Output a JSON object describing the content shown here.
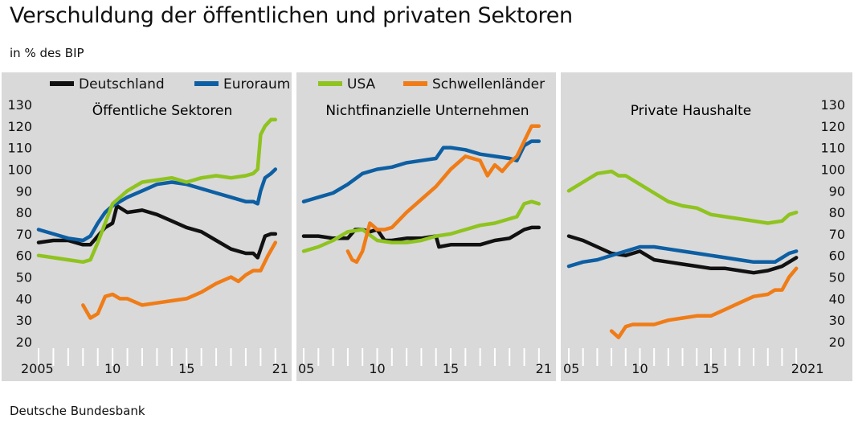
{
  "header": {
    "title": "Verschuldung der öffentlichen und privaten Sektoren",
    "subtitle": "in % des BIP"
  },
  "footer": {
    "source": "Deutsche Bundesbank"
  },
  "colors": {
    "panel_bg": "#d9d9d9",
    "Deutschland": "#111111",
    "Euroraum": "#0d5fa3",
    "USA": "#8fc31f",
    "Schwellenländer": "#f07c17"
  },
  "chart_data": [
    {
      "type": "line",
      "title": "Öffentliche Sektoren",
      "x_tick_labels": [
        "2005",
        "10",
        "15",
        "21"
      ],
      "y_tick_labels": [
        "20",
        "30",
        "40",
        "50",
        "60",
        "70",
        "80",
        "90",
        "100",
        "110",
        "120",
        "130"
      ],
      "xlim": [
        2005,
        2021.5
      ],
      "ylim": [
        17,
        133
      ],
      "legend": [
        "Deutschland",
        "Euroraum",
        "USA",
        "Schwellenländer"
      ],
      "legend_placement": "top",
      "series": [
        {
          "name": "Deutschland",
          "x": [
            2005,
            2006,
            2007,
            2008,
            2008.5,
            2009,
            2009.5,
            2010,
            2010.3,
            2011,
            2012,
            2013,
            2014,
            2015,
            2016,
            2017,
            2018,
            2019,
            2019.5,
            2019.8,
            2020,
            2020.3,
            2020.7,
            2021
          ],
          "y": [
            66,
            67,
            67,
            65,
            65,
            69,
            73,
            75,
            83,
            80,
            81,
            79,
            76,
            73,
            71,
            67,
            63,
            61,
            61,
            59,
            63,
            69,
            70,
            70
          ]
        },
        {
          "name": "Euroraum",
          "x": [
            2005,
            2006,
            2007,
            2008,
            2008.5,
            2009,
            2009.5,
            2010,
            2011,
            2012,
            2013,
            2014,
            2015,
            2016,
            2017,
            2018,
            2019,
            2019.5,
            2019.8,
            2020,
            2020.3,
            2020.7,
            2021
          ],
          "y": [
            72,
            70,
            68,
            67,
            69,
            75,
            80,
            83,
            87,
            90,
            93,
            94,
            93,
            91,
            89,
            87,
            85,
            85,
            84,
            90,
            96,
            98,
            100
          ]
        },
        {
          "name": "USA",
          "x": [
            2005,
            2006,
            2007,
            2008,
            2008.5,
            2009,
            2009.5,
            2010,
            2011,
            2012,
            2013,
            2014,
            2015,
            2016,
            2017,
            2018,
            2019,
            2019.5,
            2019.8,
            2020,
            2020.3,
            2020.7,
            2021
          ],
          "y": [
            60,
            59,
            58,
            57,
            58,
            66,
            75,
            84,
            90,
            94,
            95,
            96,
            94,
            96,
            97,
            96,
            97,
            98,
            100,
            116,
            120,
            123,
            123
          ]
        },
        {
          "name": "Schwellenländer",
          "x": [
            2008,
            2008.5,
            2009,
            2009.5,
            2010,
            2010.5,
            2011,
            2012,
            2013,
            2014,
            2015,
            2016,
            2017,
            2018,
            2018.5,
            2019,
            2019.5,
            2020,
            2020.5,
            2021
          ],
          "y": [
            37,
            31,
            33,
            41,
            42,
            40,
            40,
            37,
            38,
            39,
            40,
            43,
            47,
            50,
            48,
            51,
            53,
            53,
            60,
            66
          ]
        }
      ]
    },
    {
      "type": "line",
      "title": "Nichtfinanzielle Unternehmen",
      "x_tick_labels": [
        "05",
        "10",
        "15",
        "21"
      ],
      "xlim": [
        2005,
        2021.5
      ],
      "ylim": [
        17,
        133
      ],
      "series": [
        {
          "name": "Deutschland",
          "x": [
            2005,
            2006,
            2007,
            2008,
            2008.5,
            2009,
            2009.5,
            2010,
            2010.5,
            2011,
            2012,
            2013,
            2014,
            2014.2,
            2015,
            2016,
            2017,
            2018,
            2019,
            2019.5,
            2020,
            2020.5,
            2021
          ],
          "y": [
            69,
            69,
            68,
            68,
            72,
            72,
            71,
            72,
            67,
            67,
            68,
            68,
            69,
            64,
            65,
            65,
            65,
            67,
            68,
            70,
            72,
            73,
            73
          ]
        },
        {
          "name": "Euroraum",
          "x": [
            2005,
            2006,
            2007,
            2008,
            2009,
            2010,
            2011,
            2012,
            2013,
            2014,
            2014.5,
            2015,
            2016,
            2017,
            2018,
            2019,
            2019.5,
            2020,
            2020.5,
            2021
          ],
          "y": [
            85,
            87,
            89,
            93,
            98,
            100,
            101,
            103,
            104,
            105,
            110,
            110,
            109,
            107,
            106,
            105,
            104,
            111,
            113,
            113
          ]
        },
        {
          "name": "USA",
          "x": [
            2005,
            2006,
            2007,
            2008,
            2009,
            2010,
            2011,
            2012,
            2013,
            2014,
            2015,
            2016,
            2017,
            2018,
            2019,
            2019.5,
            2020,
            2020.5,
            2021
          ],
          "y": [
            62,
            64,
            67,
            71,
            72,
            67,
            66,
            66,
            67,
            69,
            70,
            72,
            74,
            75,
            77,
            78,
            84,
            85,
            84
          ]
        },
        {
          "name": "Schwellenländer",
          "x": [
            2008,
            2008.3,
            2008.6,
            2009,
            2009.5,
            2010,
            2010.5,
            2011,
            2012,
            2013,
            2014,
            2015,
            2016,
            2017,
            2017.5,
            2018,
            2018.5,
            2019,
            2019.5,
            2020,
            2020.5,
            2021
          ],
          "y": [
            62,
            58,
            57,
            62,
            75,
            72,
            72,
            73,
            80,
            86,
            92,
            100,
            106,
            104,
            97,
            102,
            99,
            103,
            106,
            113,
            120,
            120
          ]
        }
      ]
    },
    {
      "type": "line",
      "title": "Private Haushalte",
      "x_tick_labels": [
        "05",
        "10",
        "15",
        "2021"
      ],
      "xlim": [
        2005,
        2021.5
      ],
      "ylim": [
        17,
        133
      ],
      "series": [
        {
          "name": "Deutschland",
          "x": [
            2005,
            2006,
            2007,
            2008,
            2009,
            2010,
            2011,
            2012,
            2013,
            2014,
            2015,
            2016,
            2017,
            2018,
            2019,
            2019.5,
            2020,
            2020.5,
            2021
          ],
          "y": [
            69,
            67,
            64,
            61,
            60,
            62,
            58,
            57,
            56,
            55,
            54,
            54,
            53,
            52,
            53,
            54,
            55,
            57,
            59
          ]
        },
        {
          "name": "Euroraum",
          "x": [
            2005,
            2006,
            2007,
            2008,
            2009,
            2010,
            2011,
            2012,
            2013,
            2014,
            2015,
            2016,
            2017,
            2018,
            2019,
            2019.5,
            2020,
            2020.5,
            2021
          ],
          "y": [
            55,
            57,
            58,
            60,
            62,
            64,
            64,
            63,
            62,
            61,
            60,
            59,
            58,
            57,
            57,
            57,
            59,
            61,
            62
          ]
        },
        {
          "name": "USA",
          "x": [
            2005,
            2006,
            2007,
            2008,
            2008.5,
            2009,
            2010,
            2011,
            2012,
            2013,
            2014,
            2015,
            2016,
            2017,
            2018,
            2019,
            2020,
            2020.5,
            2021
          ],
          "y": [
            90,
            94,
            98,
            99,
            97,
            97,
            93,
            89,
            85,
            83,
            82,
            79,
            78,
            77,
            76,
            75,
            76,
            79,
            80
          ]
        },
        {
          "name": "Schwellenländer",
          "x": [
            2008,
            2008.5,
            2009,
            2009.5,
            2010,
            2011,
            2012,
            2013,
            2014,
            2015,
            2016,
            2017,
            2018,
            2019,
            2019.5,
            2020,
            2020.5,
            2021
          ],
          "y": [
            25,
            22,
            27,
            28,
            28,
            28,
            30,
            31,
            32,
            32,
            35,
            38,
            41,
            42,
            44,
            44,
            50,
            54
          ]
        }
      ]
    }
  ]
}
